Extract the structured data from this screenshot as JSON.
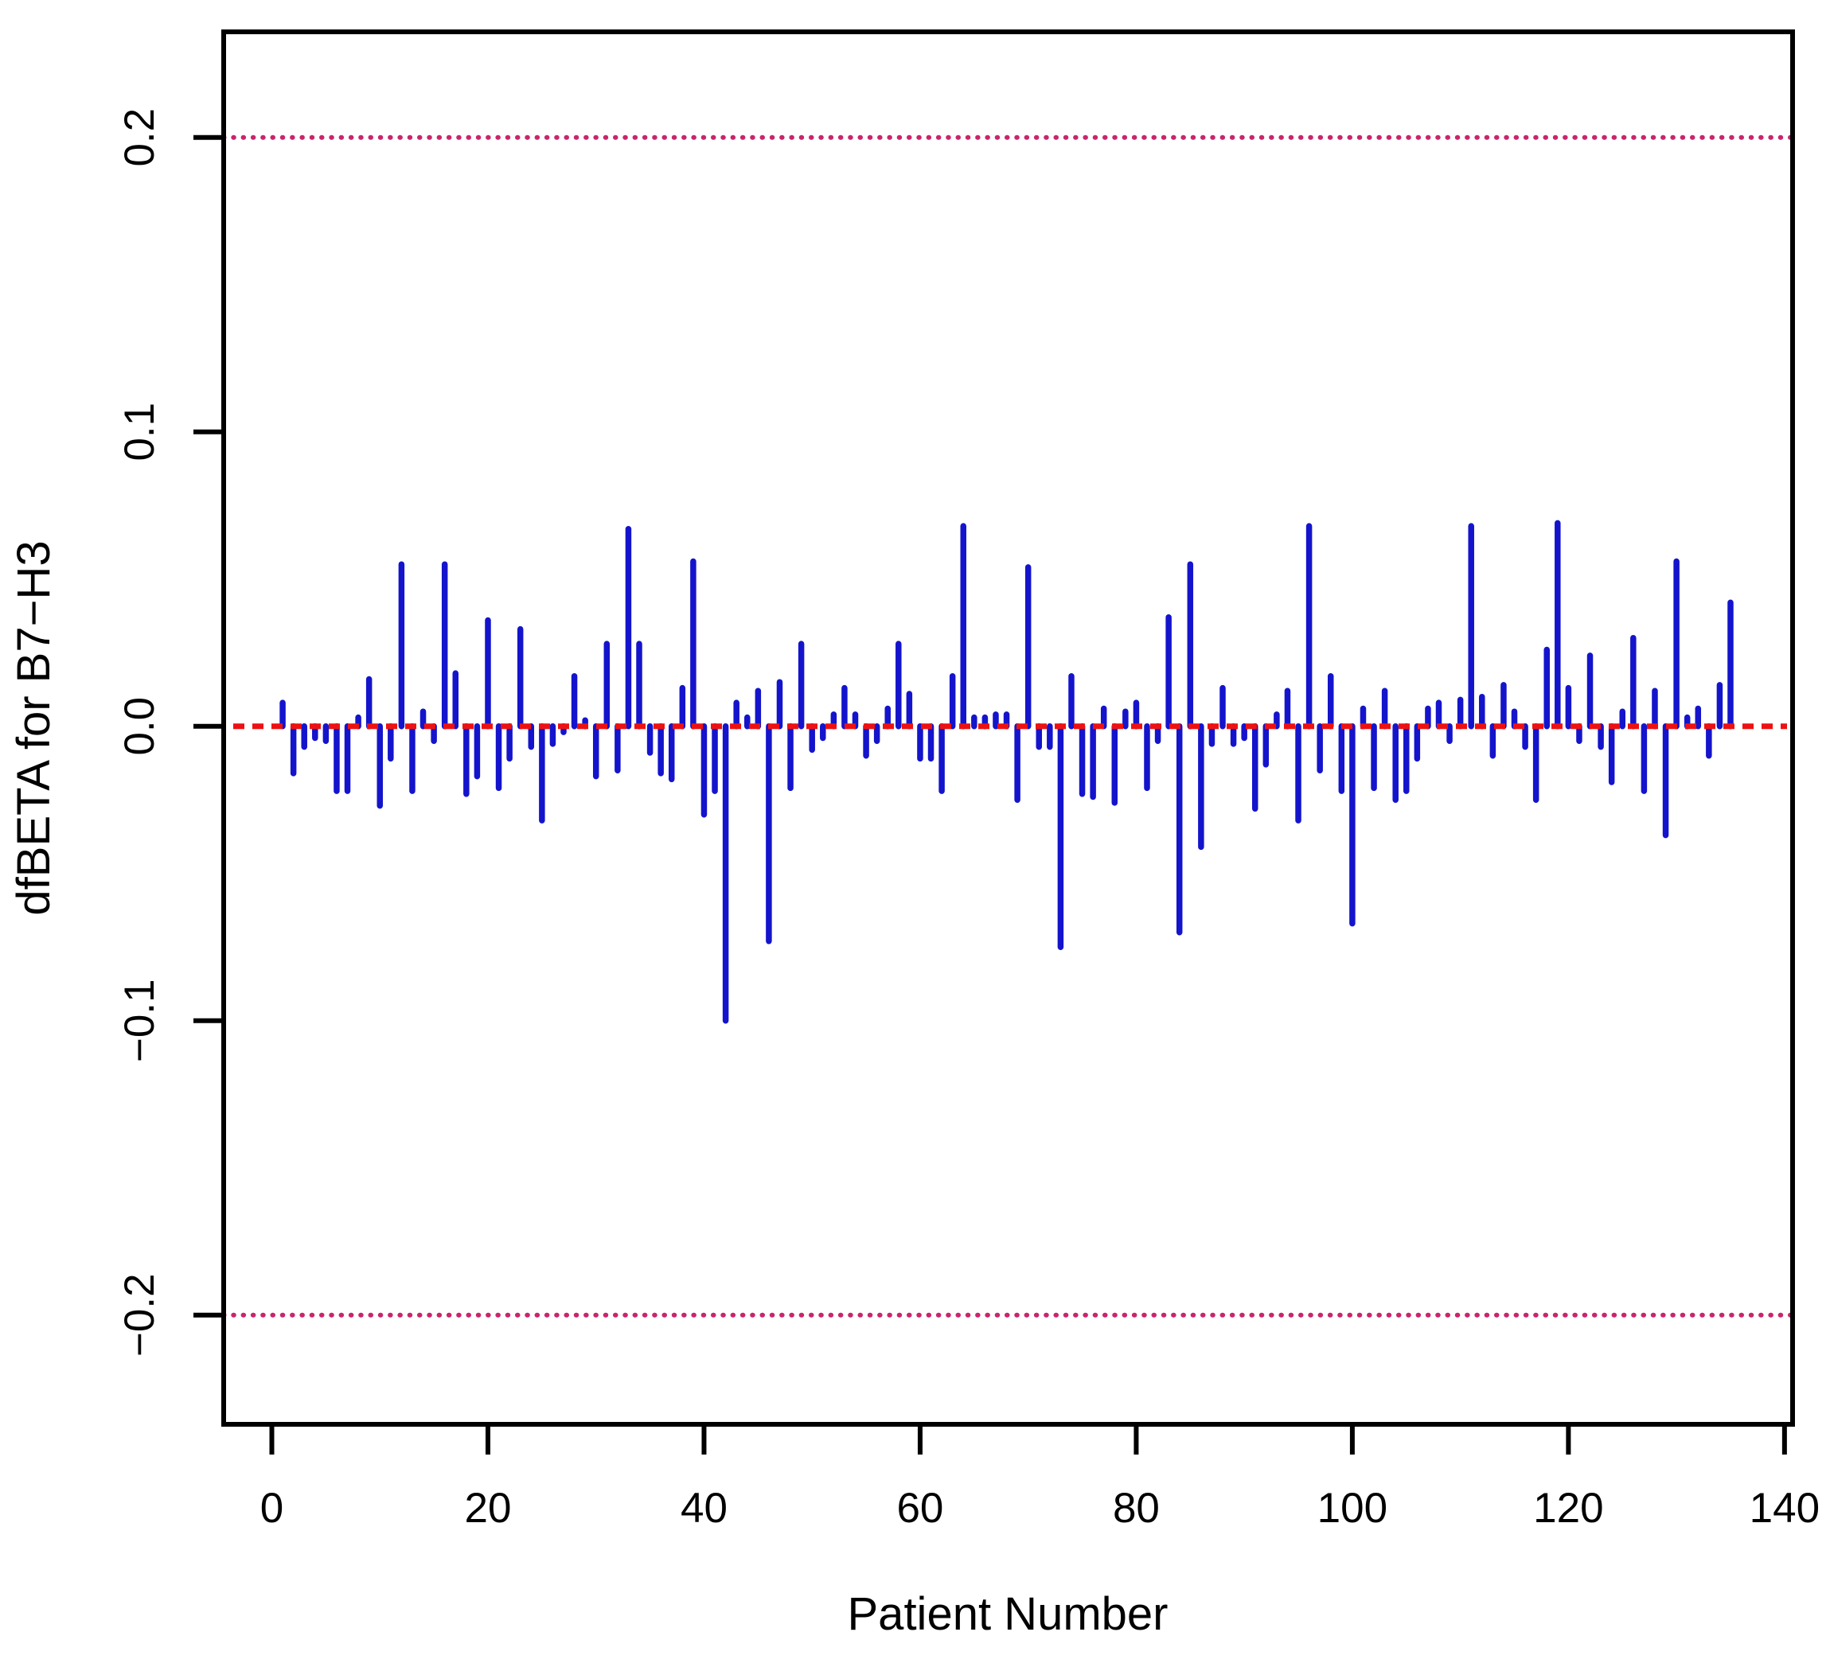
{
  "chart_data": {
    "type": "bar",
    "title": "",
    "xlabel": "Patient Number",
    "ylabel": "dfBETA for B7−H3",
    "x_encoding": "patient index, first bar = patient 1, last bar = patient 135",
    "values": [
      0.008,
      -0.016,
      -0.007,
      -0.004,
      -0.005,
      -0.022,
      -0.022,
      0.003,
      0.016,
      -0.027,
      -0.011,
      0.055,
      -0.022,
      0.005,
      -0.005,
      0.055,
      0.018,
      -0.023,
      -0.017,
      0.036,
      -0.021,
      -0.011,
      0.033,
      -0.007,
      -0.032,
      -0.006,
      -0.002,
      0.017,
      0.002,
      -0.017,
      0.028,
      -0.015,
      0.067,
      0.028,
      -0.009,
      -0.016,
      -0.018,
      0.013,
      0.056,
      -0.03,
      -0.022,
      -0.1,
      0.008,
      0.003,
      0.012,
      -0.073,
      0.015,
      -0.021,
      0.028,
      -0.008,
      -0.004,
      0.004,
      0.013,
      0.004,
      -0.01,
      -0.005,
      0.006,
      0.028,
      0.011,
      -0.011,
      -0.011,
      -0.022,
      0.017,
      0.068,
      0.003,
      0.003,
      0.004,
      0.004,
      -0.025,
      0.054,
      -0.007,
      -0.007,
      -0.075,
      0.017,
      -0.023,
      -0.024,
      0.006,
      -0.026,
      0.005,
      0.008,
      -0.021,
      -0.005,
      0.037,
      -0.07,
      0.055,
      -0.041,
      -0.006,
      0.013,
      -0.006,
      -0.004,
      -0.028,
      -0.013,
      0.004,
      0.012,
      -0.032,
      0.068,
      -0.015,
      0.017,
      -0.022,
      -0.067,
      0.006,
      -0.021,
      0.012,
      -0.025,
      -0.022,
      -0.011,
      0.006,
      0.008,
      -0.005,
      0.009,
      0.068,
      0.01,
      -0.01,
      0.014,
      0.005,
      -0.007,
      -0.025,
      0.026,
      0.069,
      0.013,
      -0.005,
      0.024,
      -0.007,
      -0.019,
      0.005,
      0.03,
      -0.022,
      0.012,
      -0.037,
      0.056,
      0.003,
      0.006,
      -0.01,
      0.014,
      0.042
    ],
    "xticks": [
      0,
      20,
      40,
      60,
      80,
      100,
      120,
      140
    ],
    "xtick_labels": [
      "0",
      "20",
      "40",
      "60",
      "80",
      "100",
      "120",
      "140"
    ],
    "yticks": [
      0.2,
      0.1,
      0.0,
      -0.1,
      -0.2
    ],
    "ytick_labels": [
      "0.2",
      "0.1",
      "0.0",
      "−0.1",
      "−0.2"
    ],
    "xlim": [
      -4.4,
      140.8
    ],
    "ylim": [
      -0.237,
      0.236
    ],
    "grid": false,
    "legend": null,
    "bar_color": "#1414CC",
    "axis_color": "#000000",
    "zero_line": {
      "y": 0.0,
      "style": "dashed",
      "color": "#EE1111"
    },
    "threshold_lines": [
      {
        "y": 0.2,
        "style": "dotted",
        "color": "#C9256E"
      },
      {
        "y": -0.2,
        "style": "dotted",
        "color": "#C9256E"
      }
    ]
  }
}
